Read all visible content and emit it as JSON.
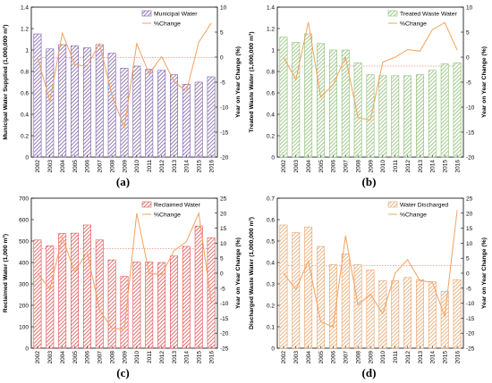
{
  "chart_data": [
    {
      "type": "bar",
      "panel_label": "(a)",
      "categories": [
        "2002",
        "2003",
        "2004",
        "2005",
        "2006",
        "2007",
        "2008",
        "2009",
        "2010",
        "2011",
        "2012",
        "2013",
        "2014",
        "2015",
        "2016"
      ],
      "series": [
        {
          "name": "Municipal Water",
          "type": "bar",
          "axis": "left",
          "color": "#7b5ea7",
          "values": [
            1.15,
            1.01,
            1.05,
            1.04,
            1.02,
            1.05,
            0.97,
            0.83,
            0.85,
            0.82,
            0.81,
            0.77,
            0.68,
            0.7,
            0.75
          ]
        },
        {
          "name": "%Change",
          "type": "line",
          "axis": "right",
          "color": "#f5a25d",
          "values": [
            0,
            -8.8,
            4.8,
            -1.5,
            -1.8,
            2.7,
            -7.6,
            -14.1,
            2.7,
            -3.3,
            0.1,
            -4.8,
            -6.9,
            3.0,
            6.8
          ]
        }
      ],
      "ylabel": "Municipal Water Supplied (1,000,000 m³)",
      "y2label": "Year on Year Change (%)",
      "ylim": [
        0,
        1.4
      ],
      "y_ticks": [
        "0",
        "0.2",
        "0.4",
        "0.6",
        "0.8",
        "1",
        "1.2",
        "1.4"
      ],
      "y2lim": [
        -20,
        10
      ],
      "y2_ticks": [
        "-20",
        "-15",
        "-10",
        "-5",
        "0",
        "5",
        "10"
      ],
      "reference_line": 0.93,
      "legend": "top-right"
    },
    {
      "type": "bar",
      "panel_label": "(b)",
      "categories": [
        "2002",
        "2003",
        "2004",
        "2005",
        "2006",
        "2007",
        "2008",
        "2009",
        "2010",
        "2011",
        "2012",
        "2013",
        "2014",
        "2015",
        "2016"
      ],
      "series": [
        {
          "name": "Treated Waste Water",
          "type": "bar",
          "axis": "left",
          "color": "#8cbf72",
          "values": [
            1.12,
            1.07,
            1.15,
            1.06,
            1.0,
            1.0,
            0.88,
            0.77,
            0.76,
            0.76,
            0.76,
            0.77,
            0.81,
            0.87,
            0.88
          ]
        },
        {
          "name": "%Change",
          "type": "line",
          "axis": "right",
          "color": "#f5a25d",
          "values": [
            0,
            -4.5,
            7.0,
            -8.0,
            -5.5,
            0,
            -12.1,
            -12.6,
            -1.0,
            0,
            1.5,
            1.2,
            5.5,
            6.9,
            1.4
          ]
        }
      ],
      "ylabel": "Treated Waste Water (1,000,000 m³)",
      "y2label": "Year on Year Change (%)",
      "ylim": [
        0,
        1.4
      ],
      "y_ticks": [
        "0",
        "0.2",
        "0.4",
        "0.6",
        "0.8",
        "1",
        "1.2",
        "1.4"
      ],
      "y2lim": [
        -20,
        10
      ],
      "y2_ticks": [
        "-20",
        "-15",
        "-10",
        "-5",
        "0",
        "5",
        "10"
      ],
      "reference_line": 0.85,
      "legend": "top-right"
    },
    {
      "type": "bar",
      "panel_label": "(c)",
      "categories": [
        "2002",
        "2003",
        "2004",
        "2005",
        "2006",
        "2007",
        "2008",
        "2009",
        "2010",
        "2011",
        "2012",
        "2013",
        "2014",
        "2015",
        "2016"
      ],
      "series": [
        {
          "name": "Reclaimed Water",
          "type": "bar",
          "axis": "left",
          "color": "#e0504f",
          "values": [
            505,
            478,
            535,
            537,
            575,
            505,
            412,
            335,
            402,
            402,
            400,
            430,
            475,
            570,
            515
          ]
        },
        {
          "name": "%Change",
          "type": "line",
          "axis": "right",
          "color": "#f5a25d",
          "values": [
            0,
            -5.3,
            11.9,
            0.4,
            7.1,
            -12.2,
            -18.4,
            -18.7,
            20.0,
            0,
            -0.5,
            7.5,
            10.5,
            20.0,
            -9.6
          ]
        }
      ],
      "ylabel": "Reclaimed Water (1,000 m³)",
      "y2label": "Year on Year Change (%)",
      "ylim": [
        0,
        700
      ],
      "y_ticks": [
        "0",
        "100",
        "200",
        "300",
        "400",
        "500",
        "600",
        "700"
      ],
      "y2lim": [
        -25,
        25
      ],
      "y2_ticks": [
        "-25",
        "-20",
        "-15",
        "-10",
        "-5",
        "0",
        "5",
        "10",
        "15",
        "20",
        "25"
      ],
      "reference_line": 465,
      "legend": "top-right"
    },
    {
      "type": "bar",
      "panel_label": "(d)",
      "categories": [
        "2002",
        "2003",
        "2004",
        "2005",
        "2006",
        "2007",
        "2008",
        "2009",
        "2010",
        "2011",
        "2012",
        "2013",
        "2014",
        "2015",
        "2016"
      ],
      "series": [
        {
          "name": "Water Discharged",
          "type": "bar",
          "axis": "left",
          "color": "#e9a36a",
          "values": [
            0.575,
            0.54,
            0.565,
            0.475,
            0.39,
            0.44,
            0.39,
            0.365,
            0.315,
            0.315,
            0.33,
            0.32,
            0.31,
            0.265,
            0.32
          ]
        },
        {
          "name": "%Change",
          "type": "line",
          "axis": "right",
          "color": "#f5a25d",
          "values": [
            0,
            -5.4,
            4.0,
            -16.2,
            -17.9,
            12.5,
            -10.6,
            -7.0,
            -13.5,
            0,
            4.5,
            -2.5,
            -3.0,
            -14.5,
            21.0
          ]
        }
      ],
      "ylabel": "Discharged Waste Water (1,000,000 m³)",
      "y2label": "Year on Year Change (%)",
      "ylim": [
        0,
        0.7
      ],
      "y_ticks": [
        "0",
        "0.1",
        "0.2",
        "0.3",
        "0.4",
        "0.5",
        "0.6",
        "0.7"
      ],
      "y2lim": [
        -25,
        25
      ],
      "y2_ticks": [
        "-25",
        "-20",
        "-15",
        "-10",
        "-5",
        "0",
        "5",
        "10",
        "15",
        "20",
        "25"
      ],
      "reference_line": 0.385,
      "legend": "top-right"
    }
  ]
}
